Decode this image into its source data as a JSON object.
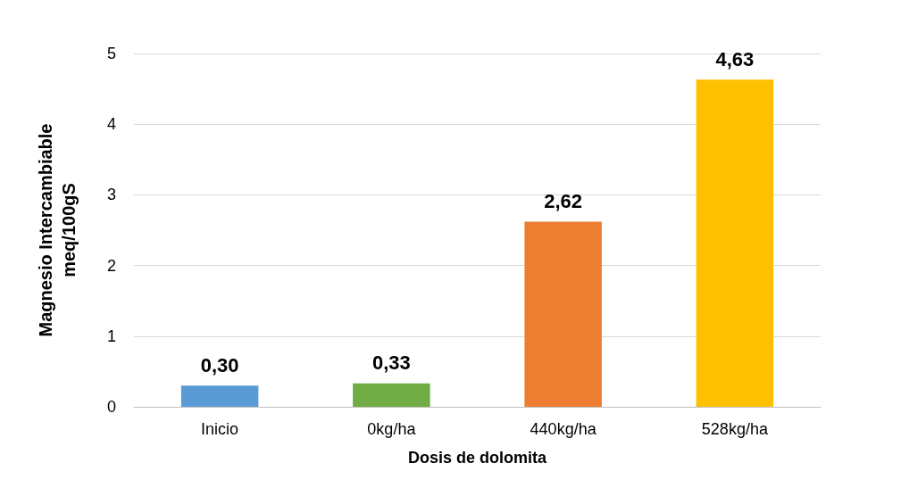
{
  "chart_data": {
    "type": "bar",
    "xlabel": "Dosis de dolomita",
    "ylabel": "Magnesio Intercambiable\nmeq/100gS",
    "categories": [
      "Inicio",
      "0kg/ha",
      "440kg/ha",
      "528kg/ha"
    ],
    "values": [
      0.3,
      0.33,
      2.62,
      4.63
    ],
    "colors": [
      "#5b9bd5",
      "#70ad47",
      "#ed7d31",
      "#ffc000"
    ],
    "value_labels": [
      "0,30",
      "0,33",
      "2,62",
      "4,63"
    ],
    "ylim": [
      0,
      5
    ],
    "yticks": [
      0,
      1,
      2,
      3,
      4,
      5
    ],
    "grid": "y"
  }
}
